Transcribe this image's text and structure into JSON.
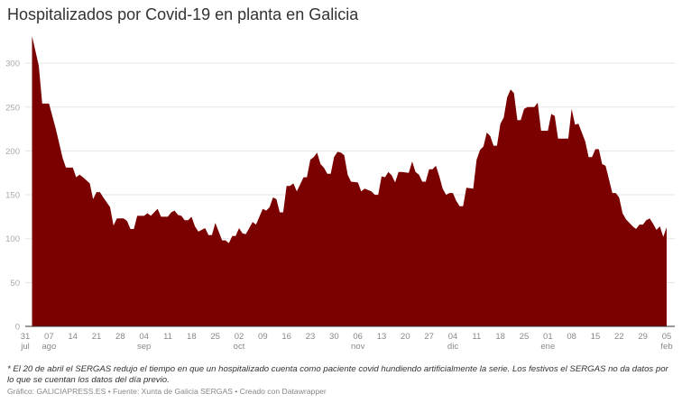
{
  "title": "Hospitalizados por Covid-19 en planta en Galicia",
  "note": "* El 20 de abril el SERGAS redujo el tiempo en que un hospitalizado cuenta como paciente covid hundiendo artificialmente la serie. Los festivos el SERGAS no da datos por lo que se cuentan los datos del día previo.",
  "credit": "Gráfico: GALICIAPRESS.ES • Fuente: Xunta de Galicia SERGAS • Creado con Datawrapper",
  "chart_data": {
    "type": "area",
    "title": "Hospitalizados por Covid-19 en planta en Galicia",
    "xlabel": "",
    "ylabel": "",
    "color": "#7b0000",
    "grid": true,
    "ylim": [
      0,
      330
    ],
    "yticks": [
      0,
      50,
      100,
      150,
      200,
      250,
      300
    ],
    "xlim": [
      "2020-07-31",
      "2021-02-05"
    ],
    "xticks": [
      {
        "date": "2020-07-31",
        "day": "31",
        "month": "jul"
      },
      {
        "date": "2020-08-07",
        "day": "07",
        "month": "ago"
      },
      {
        "date": "2020-08-14",
        "day": "14",
        "month": ""
      },
      {
        "date": "2020-08-21",
        "day": "21",
        "month": ""
      },
      {
        "date": "2020-08-28",
        "day": "28",
        "month": ""
      },
      {
        "date": "2020-09-04",
        "day": "04",
        "month": "sep"
      },
      {
        "date": "2020-09-11",
        "day": "11",
        "month": ""
      },
      {
        "date": "2020-09-18",
        "day": "18",
        "month": ""
      },
      {
        "date": "2020-09-25",
        "day": "25",
        "month": ""
      },
      {
        "date": "2020-10-02",
        "day": "02",
        "month": "oct"
      },
      {
        "date": "2020-10-09",
        "day": "09",
        "month": ""
      },
      {
        "date": "2020-10-16",
        "day": "16",
        "month": ""
      },
      {
        "date": "2020-10-23",
        "day": "23",
        "month": ""
      },
      {
        "date": "2020-10-30",
        "day": "30",
        "month": ""
      },
      {
        "date": "2020-11-06",
        "day": "06",
        "month": "nov"
      },
      {
        "date": "2020-11-13",
        "day": "13",
        "month": ""
      },
      {
        "date": "2020-11-20",
        "day": "20",
        "month": ""
      },
      {
        "date": "2020-11-27",
        "day": "27",
        "month": ""
      },
      {
        "date": "2020-12-04",
        "day": "04",
        "month": "dic"
      },
      {
        "date": "2020-12-11",
        "day": "11",
        "month": ""
      },
      {
        "date": "2020-12-18",
        "day": "18",
        "month": ""
      },
      {
        "date": "2020-12-25",
        "day": "25",
        "month": ""
      },
      {
        "date": "2021-01-01",
        "day": "01",
        "month": "ene"
      },
      {
        "date": "2021-01-08",
        "day": "08",
        "month": ""
      },
      {
        "date": "2021-01-15",
        "day": "15",
        "month": ""
      },
      {
        "date": "2021-01-22",
        "day": "22",
        "month": ""
      },
      {
        "date": "2021-01-29",
        "day": "29",
        "month": ""
      },
      {
        "date": "2021-02-05",
        "day": "05",
        "month": "feb"
      }
    ],
    "points": [
      [
        "2020-08-02",
        331
      ],
      [
        "2020-08-04",
        297
      ],
      [
        "2020-08-05",
        254
      ],
      [
        "2020-08-07",
        254
      ],
      [
        "2020-08-09",
        225
      ],
      [
        "2020-08-11",
        192
      ],
      [
        "2020-08-12",
        181
      ],
      [
        "2020-08-14",
        181
      ],
      [
        "2020-08-15",
        170
      ],
      [
        "2020-08-16",
        173
      ],
      [
        "2020-08-17",
        170
      ],
      [
        "2020-08-19",
        163
      ],
      [
        "2020-08-20",
        145
      ],
      [
        "2020-08-21",
        153
      ],
      [
        "2020-08-22",
        153
      ],
      [
        "2020-08-23",
        147
      ],
      [
        "2020-08-25",
        136
      ],
      [
        "2020-08-26",
        115
      ],
      [
        "2020-08-27",
        123
      ],
      [
        "2020-08-29",
        123
      ],
      [
        "2020-08-30",
        120
      ],
      [
        "2020-08-31",
        111
      ],
      [
        "2020-09-01",
        111
      ],
      [
        "2020-09-02",
        126
      ],
      [
        "2020-09-04",
        126
      ],
      [
        "2020-09-05",
        129
      ],
      [
        "2020-09-06",
        126
      ],
      [
        "2020-09-08",
        134
      ],
      [
        "2020-09-09",
        125
      ],
      [
        "2020-09-11",
        125
      ],
      [
        "2020-09-12",
        130
      ],
      [
        "2020-09-13",
        132
      ],
      [
        "2020-09-14",
        127
      ],
      [
        "2020-09-15",
        126
      ],
      [
        "2020-09-16",
        121
      ],
      [
        "2020-09-17",
        121
      ],
      [
        "2020-09-18",
        125
      ],
      [
        "2020-09-19",
        114
      ],
      [
        "2020-09-20",
        108
      ],
      [
        "2020-09-22",
        112
      ],
      [
        "2020-09-23",
        104
      ],
      [
        "2020-09-24",
        104
      ],
      [
        "2020-09-25",
        118
      ],
      [
        "2020-09-27",
        98
      ],
      [
        "2020-09-28",
        98
      ],
      [
        "2020-09-29",
        95
      ],
      [
        "2020-09-30",
        103
      ],
      [
        "2020-10-01",
        103
      ],
      [
        "2020-10-02",
        112
      ],
      [
        "2020-10-03",
        106
      ],
      [
        "2020-10-04",
        105
      ],
      [
        "2020-10-06",
        119
      ],
      [
        "2020-10-07",
        116
      ],
      [
        "2020-10-09",
        134
      ],
      [
        "2020-10-10",
        132
      ],
      [
        "2020-10-11",
        136
      ],
      [
        "2020-10-12",
        147
      ],
      [
        "2020-10-13",
        145
      ],
      [
        "2020-10-14",
        130
      ],
      [
        "2020-10-15",
        130
      ],
      [
        "2020-10-16",
        160
      ],
      [
        "2020-10-17",
        160
      ],
      [
        "2020-10-18",
        163
      ],
      [
        "2020-10-19",
        154
      ],
      [
        "2020-10-21",
        170
      ],
      [
        "2020-10-22",
        170
      ],
      [
        "2020-10-23",
        190
      ],
      [
        "2020-10-24",
        193
      ],
      [
        "2020-10-25",
        198
      ],
      [
        "2020-10-26",
        185
      ],
      [
        "2020-10-27",
        181
      ],
      [
        "2020-10-28",
        174
      ],
      [
        "2020-10-29",
        174
      ],
      [
        "2020-10-30",
        193
      ],
      [
        "2020-10-31",
        199
      ],
      [
        "2020-11-01",
        198
      ],
      [
        "2020-11-02",
        195
      ],
      [
        "2020-11-03",
        173
      ],
      [
        "2020-11-04",
        165
      ],
      [
        "2020-11-06",
        164
      ],
      [
        "2020-11-07",
        154
      ],
      [
        "2020-11-08",
        157
      ],
      [
        "2020-11-10",
        154
      ],
      [
        "2020-11-11",
        150
      ],
      [
        "2020-11-12",
        150
      ],
      [
        "2020-11-13",
        171
      ],
      [
        "2020-11-14",
        170
      ],
      [
        "2020-11-15",
        176
      ],
      [
        "2020-11-16",
        172
      ],
      [
        "2020-11-17",
        164
      ],
      [
        "2020-11-18",
        176
      ],
      [
        "2020-11-19",
        176
      ],
      [
        "2020-11-21",
        175
      ],
      [
        "2020-11-22",
        188
      ],
      [
        "2020-11-23",
        176
      ],
      [
        "2020-11-24",
        173
      ],
      [
        "2020-11-25",
        165
      ],
      [
        "2020-11-26",
        165
      ],
      [
        "2020-11-27",
        179
      ],
      [
        "2020-11-28",
        179
      ],
      [
        "2020-11-29",
        183
      ],
      [
        "2020-11-30",
        171
      ],
      [
        "2020-12-01",
        157
      ],
      [
        "2020-12-02",
        150
      ],
      [
        "2020-12-03",
        152
      ],
      [
        "2020-12-04",
        152
      ],
      [
        "2020-12-05",
        143
      ],
      [
        "2020-12-06",
        137
      ],
      [
        "2020-12-07",
        137
      ],
      [
        "2020-12-08",
        158
      ],
      [
        "2020-12-10",
        157
      ],
      [
        "2020-12-11",
        190
      ],
      [
        "2020-12-12",
        201
      ],
      [
        "2020-12-13",
        205
      ],
      [
        "2020-12-14",
        221
      ],
      [
        "2020-12-15",
        217
      ],
      [
        "2020-12-16",
        206
      ],
      [
        "2020-12-17",
        206
      ],
      [
        "2020-12-18",
        231
      ],
      [
        "2020-12-19",
        238
      ],
      [
        "2020-12-20",
        261
      ],
      [
        "2020-12-21",
        270
      ],
      [
        "2020-12-22",
        266
      ],
      [
        "2020-12-23",
        235
      ],
      [
        "2020-12-24",
        235
      ],
      [
        "2020-12-25",
        248
      ],
      [
        "2020-12-26",
        250
      ],
      [
        "2020-12-28",
        250
      ],
      [
        "2020-12-29",
        255
      ],
      [
        "2020-12-30",
        223
      ],
      [
        "2021-01-01",
        223
      ],
      [
        "2021-01-02",
        242
      ],
      [
        "2021-01-03",
        240
      ],
      [
        "2021-01-04",
        214
      ],
      [
        "2021-01-07",
        214
      ],
      [
        "2021-01-08",
        248
      ],
      [
        "2021-01-09",
        230
      ],
      [
        "2021-01-10",
        231
      ],
      [
        "2021-01-12",
        211
      ],
      [
        "2021-01-13",
        193
      ],
      [
        "2021-01-14",
        193
      ],
      [
        "2021-01-15",
        202
      ],
      [
        "2021-01-16",
        202
      ],
      [
        "2021-01-17",
        185
      ],
      [
        "2021-01-18",
        183
      ],
      [
        "2021-01-20",
        152
      ],
      [
        "2021-01-21",
        152
      ],
      [
        "2021-01-22",
        147
      ],
      [
        "2021-01-23",
        129
      ],
      [
        "2021-01-24",
        122
      ],
      [
        "2021-01-26",
        114
      ],
      [
        "2021-01-27",
        111
      ],
      [
        "2021-01-28",
        116
      ],
      [
        "2021-01-29",
        116
      ],
      [
        "2021-01-30",
        121
      ],
      [
        "2021-01-31",
        123
      ],
      [
        "2021-02-01",
        117
      ],
      [
        "2021-02-02",
        110
      ],
      [
        "2021-02-03",
        114
      ],
      [
        "2021-02-04",
        102
      ],
      [
        "2021-02-05",
        113
      ]
    ]
  }
}
